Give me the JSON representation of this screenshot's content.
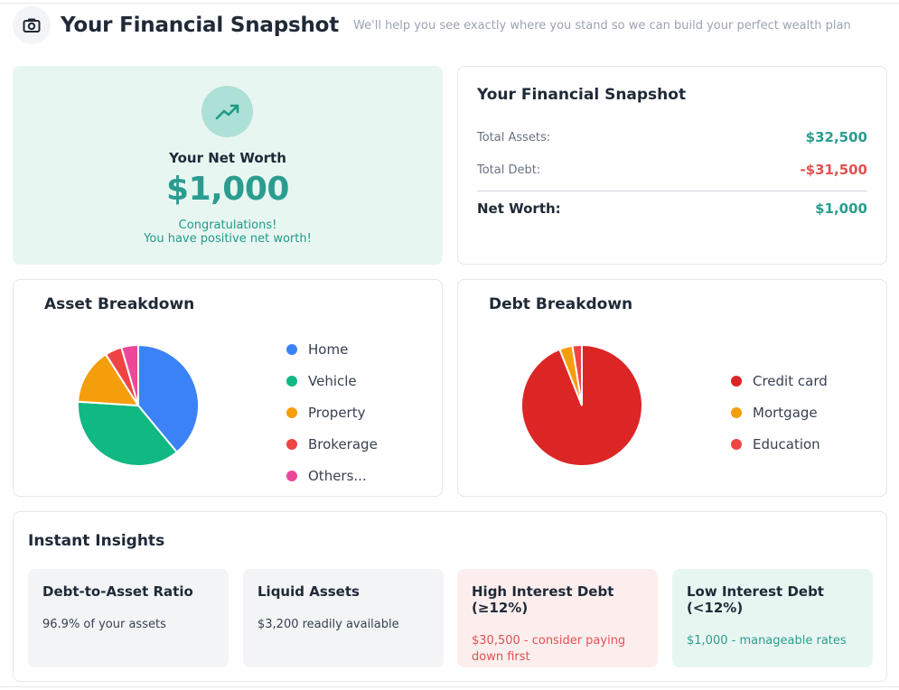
{
  "header": {
    "icon": "camera-icon",
    "title": "Your Financial Snapshot",
    "subtitle": "We'll help you see exactly where you stand so we can build your perfect wealth plan"
  },
  "net_worth": {
    "icon": "trending-up-icon",
    "label": "Your Net Worth",
    "value": "$1,000",
    "message_line1": "Congratulations!",
    "message_line2": "You have positive net worth!"
  },
  "snapshot": {
    "title": "Your Financial Snapshot",
    "total_assets_label": "Total Assets:",
    "total_assets_value": "$32,500",
    "total_debt_label": "Total Debt:",
    "total_debt_value": "-$31,500",
    "net_worth_label": "Net Worth:",
    "net_worth_value": "$1,000"
  },
  "asset_breakdown": {
    "title": "Asset Breakdown",
    "legend": [
      {
        "label": "Home",
        "color": "#3b82f6"
      },
      {
        "label": "Vehicle",
        "color": "#10b981"
      },
      {
        "label": "Property",
        "color": "#f59e0b"
      },
      {
        "label": "Brokerage",
        "color": "#ef4444"
      },
      {
        "label": "Others...",
        "color": "#ec4899"
      }
    ]
  },
  "debt_breakdown": {
    "title": "Debt Breakdown",
    "legend": [
      {
        "label": "Credit card",
        "color": "#dc2626"
      },
      {
        "label": "Mortgage",
        "color": "#f59e0b"
      },
      {
        "label": "Education",
        "color": "#ef4444"
      }
    ]
  },
  "chart_data": [
    {
      "type": "pie",
      "title": "Asset Breakdown",
      "categories": [
        "Home",
        "Vehicle",
        "Property",
        "Brokerage",
        "Others..."
      ],
      "values": [
        39,
        37,
        15,
        4.5,
        4.5
      ],
      "colors": [
        "#3b82f6",
        "#10b981",
        "#f59e0b",
        "#ef4444",
        "#ec4899"
      ],
      "legend": "right"
    },
    {
      "type": "pie",
      "title": "Debt Breakdown",
      "categories": [
        "Credit card",
        "Mortgage",
        "Education"
      ],
      "values": [
        94,
        3.5,
        2.5
      ],
      "colors": [
        "#dc2626",
        "#f59e0b",
        "#ef4444"
      ],
      "legend": "right"
    }
  ],
  "insights": {
    "title": "Instant Insights",
    "cards": [
      {
        "title": "Debt-to-Asset Ratio",
        "text": "96.9% of your assets"
      },
      {
        "title": "Liquid Assets",
        "text": "$3,200 readily available"
      },
      {
        "title": "High Interest Debt (≥12%)",
        "text": "$30,500 - consider paying down first"
      },
      {
        "title": "Low Interest Debt (<12%)",
        "text": "$1,000 - manageable rates"
      }
    ]
  }
}
